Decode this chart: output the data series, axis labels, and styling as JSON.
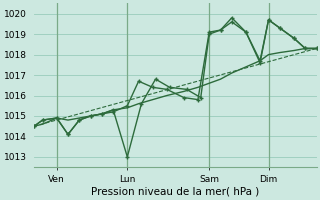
{
  "xlabel": "Pression niveau de la mer( hPa )",
  "background_color": "#cce8e0",
  "grid_color": "#99ccbb",
  "line_color": "#2d6b3c",
  "ylim": [
    1012.5,
    1020.5
  ],
  "yticks": [
    1013,
    1014,
    1015,
    1016,
    1017,
    1018,
    1019,
    1020
  ],
  "xlim": [
    0,
    100
  ],
  "day_labels": [
    "Ven",
    "Lun",
    "Sam",
    "Dim"
  ],
  "day_positions": [
    8,
    33,
    62,
    83
  ],
  "vline_color": "#7aaa88",
  "series1_x": [
    0,
    3,
    8,
    12,
    16,
    20,
    24,
    28,
    33,
    38,
    43,
    48,
    54,
    59,
    62,
    66,
    70,
    75,
    80,
    83,
    87,
    92,
    96,
    100
  ],
  "series1_y": [
    1014.5,
    1014.8,
    1014.9,
    1014.1,
    1014.8,
    1015.0,
    1015.1,
    1015.3,
    1013.0,
    1015.6,
    1016.8,
    1016.4,
    1016.3,
    1015.9,
    1019.0,
    1019.2,
    1019.6,
    1019.1,
    1017.6,
    1019.7,
    1019.3,
    1018.8,
    1018.3,
    1018.3
  ],
  "series2_x": [
    0,
    3,
    8,
    12,
    16,
    20,
    24,
    28,
    33,
    37,
    42,
    47,
    53,
    58,
    62,
    66,
    70,
    75,
    80,
    83,
    87,
    92,
    96,
    100
  ],
  "series2_y": [
    1014.5,
    1014.8,
    1014.9,
    1014.1,
    1014.8,
    1015.0,
    1015.1,
    1015.2,
    1015.5,
    1016.7,
    1016.4,
    1016.3,
    1015.9,
    1015.8,
    1019.1,
    1019.2,
    1019.8,
    1019.1,
    1017.7,
    1019.7,
    1019.3,
    1018.8,
    1018.3,
    1018.3
  ],
  "series3_x": [
    0,
    100
  ],
  "series3_y": [
    1014.5,
    1018.3
  ],
  "series4_x": [
    0,
    3,
    8,
    12,
    16,
    20,
    24,
    28,
    33,
    37,
    42,
    47,
    53,
    58,
    62,
    66,
    70,
    75,
    80,
    83,
    87,
    92,
    96,
    100
  ],
  "series4_y": [
    1014.5,
    1014.6,
    1014.9,
    1014.8,
    1014.9,
    1015.0,
    1015.1,
    1015.3,
    1015.4,
    1015.6,
    1015.8,
    1016.0,
    1016.2,
    1016.4,
    1016.6,
    1016.8,
    1017.1,
    1017.4,
    1017.7,
    1018.0,
    1018.1,
    1018.2,
    1018.3,
    1018.3
  ]
}
